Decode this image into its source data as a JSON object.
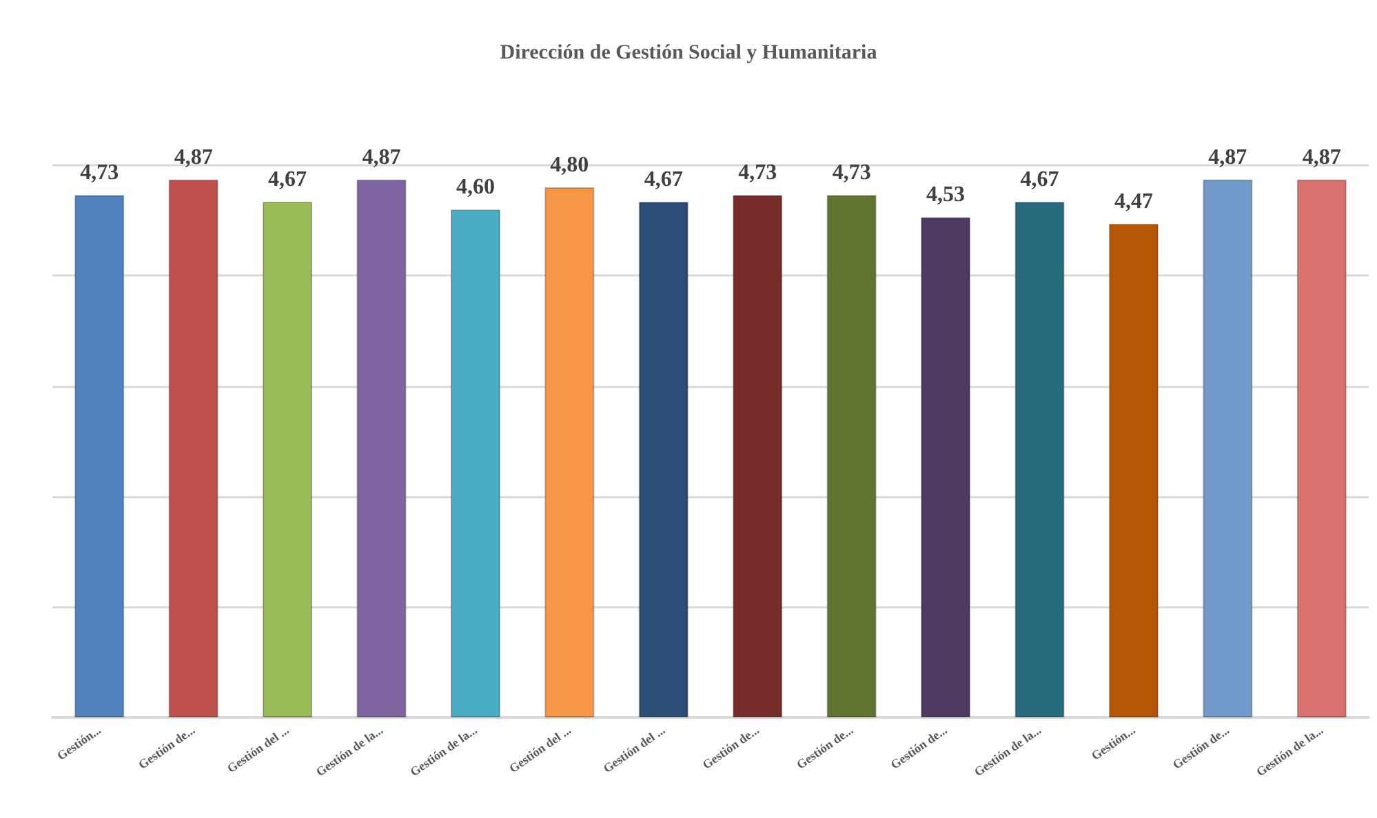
{
  "chart_data": {
    "type": "bar",
    "title": "Dirección de Gestión Social y Humanitaria",
    "categories": [
      "Gestión...",
      "Gestión de...",
      "Gestión del ...",
      "Gestión de la...",
      "Gestión de la...",
      "Gestión del ...",
      "Gestión del ...",
      "Gestión de...",
      "Gestión de...",
      "Gestión de...",
      "Gestión de la...",
      "Gestión...",
      "Gestión de...",
      "Gestión de la..."
    ],
    "values": [
      4.73,
      4.87,
      4.67,
      4.87,
      4.6,
      4.8,
      4.67,
      4.73,
      4.73,
      4.53,
      4.67,
      4.47,
      4.87,
      4.87
    ],
    "value_labels": [
      "4,73",
      "4,87",
      "4,67",
      "4,87",
      "4,60",
      "4,80",
      "4,67",
      "4,73",
      "4,73",
      "4,53",
      "4,67",
      "4,47",
      "4,87",
      "4,87"
    ],
    "colors": [
      "#4f81bd",
      "#c0504d",
      "#9bbb59",
      "#8064a2",
      "#4bacc6",
      "#f79646",
      "#2c4d75",
      "#772c2a",
      "#5f7530",
      "#4d3b62",
      "#276a7c",
      "#b65708",
      "#729aca",
      "#d9716f"
    ],
    "ylim": [
      0,
      5
    ],
    "yticks": [
      {
        "value": 0,
        "label": null
      },
      {
        "value": 1,
        "label": null
      },
      {
        "value": 2,
        "label": null
      },
      {
        "value": 3,
        "label": null
      },
      {
        "value": 4,
        "label": null
      },
      {
        "value": 5,
        "label": null
      }
    ],
    "grid": "y",
    "tick_labels": "x"
  }
}
